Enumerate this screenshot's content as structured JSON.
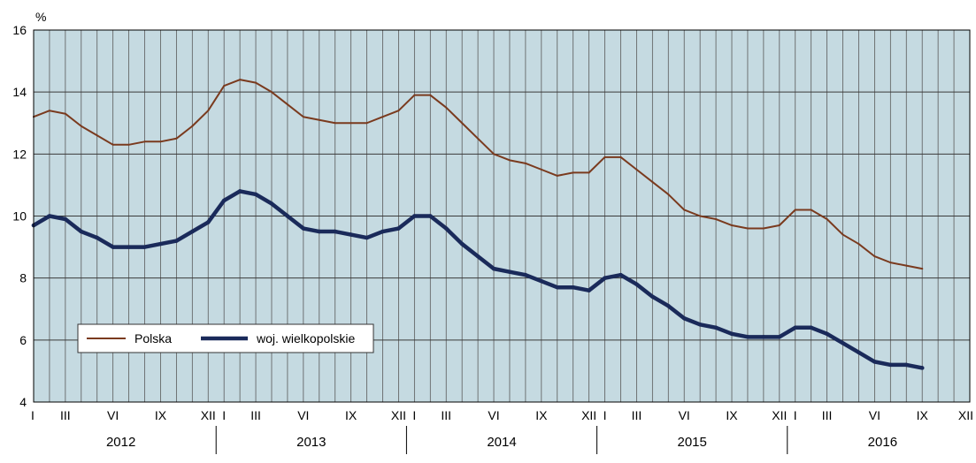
{
  "chart_data": {
    "type": "line",
    "ylabel": "%",
    "ylim": [
      4,
      16
    ],
    "yticks": [
      "4",
      "6",
      "8",
      "10",
      "12",
      "14",
      "16"
    ],
    "months": [
      "I",
      "II",
      "III",
      "IV",
      "V",
      "VI",
      "VII",
      "VIII",
      "IX",
      "X",
      "XI",
      "XII"
    ],
    "month_labels_shown": [
      "I",
      "III",
      "VI",
      "IX",
      "XII"
    ],
    "years": [
      "2012",
      "2013",
      "2014",
      "2015",
      "2016"
    ],
    "grid": true,
    "legend_position": "bottom-left",
    "series": [
      {
        "name": "Polska",
        "color": "#7a3a1e",
        "values": [
          13.2,
          13.4,
          13.3,
          12.9,
          12.6,
          12.3,
          12.3,
          12.4,
          12.4,
          12.5,
          12.9,
          13.4,
          14.2,
          14.4,
          14.3,
          14.0,
          13.6,
          13.2,
          13.1,
          13.0,
          13.0,
          13.0,
          13.2,
          13.4,
          13.9,
          13.9,
          13.5,
          13.0,
          12.5,
          12.0,
          11.8,
          11.7,
          11.5,
          11.3,
          11.4,
          11.4,
          11.9,
          11.9,
          11.5,
          11.1,
          10.7,
          10.2,
          10.0,
          9.9,
          9.7,
          9.6,
          9.6,
          9.7,
          10.2,
          10.2,
          9.9,
          9.4,
          9.1,
          8.7,
          8.5,
          8.4,
          8.3
        ]
      },
      {
        "name": "woj. wielkopolskie",
        "color": "#1a2a5a",
        "values": [
          9.7,
          10.0,
          9.9,
          9.5,
          9.3,
          9.0,
          9.0,
          9.0,
          9.1,
          9.2,
          9.5,
          9.8,
          10.5,
          10.8,
          10.7,
          10.4,
          10.0,
          9.6,
          9.5,
          9.5,
          9.4,
          9.3,
          9.5,
          9.6,
          10.0,
          10.0,
          9.6,
          9.1,
          8.7,
          8.3,
          8.2,
          8.1,
          7.9,
          7.7,
          7.7,
          7.6,
          8.0,
          8.1,
          7.8,
          7.4,
          7.1,
          6.7,
          6.5,
          6.4,
          6.2,
          6.1,
          6.1,
          6.1,
          6.4,
          6.4,
          6.2,
          5.9,
          5.6,
          5.3,
          5.2,
          5.2,
          5.1
        ]
      }
    ]
  }
}
